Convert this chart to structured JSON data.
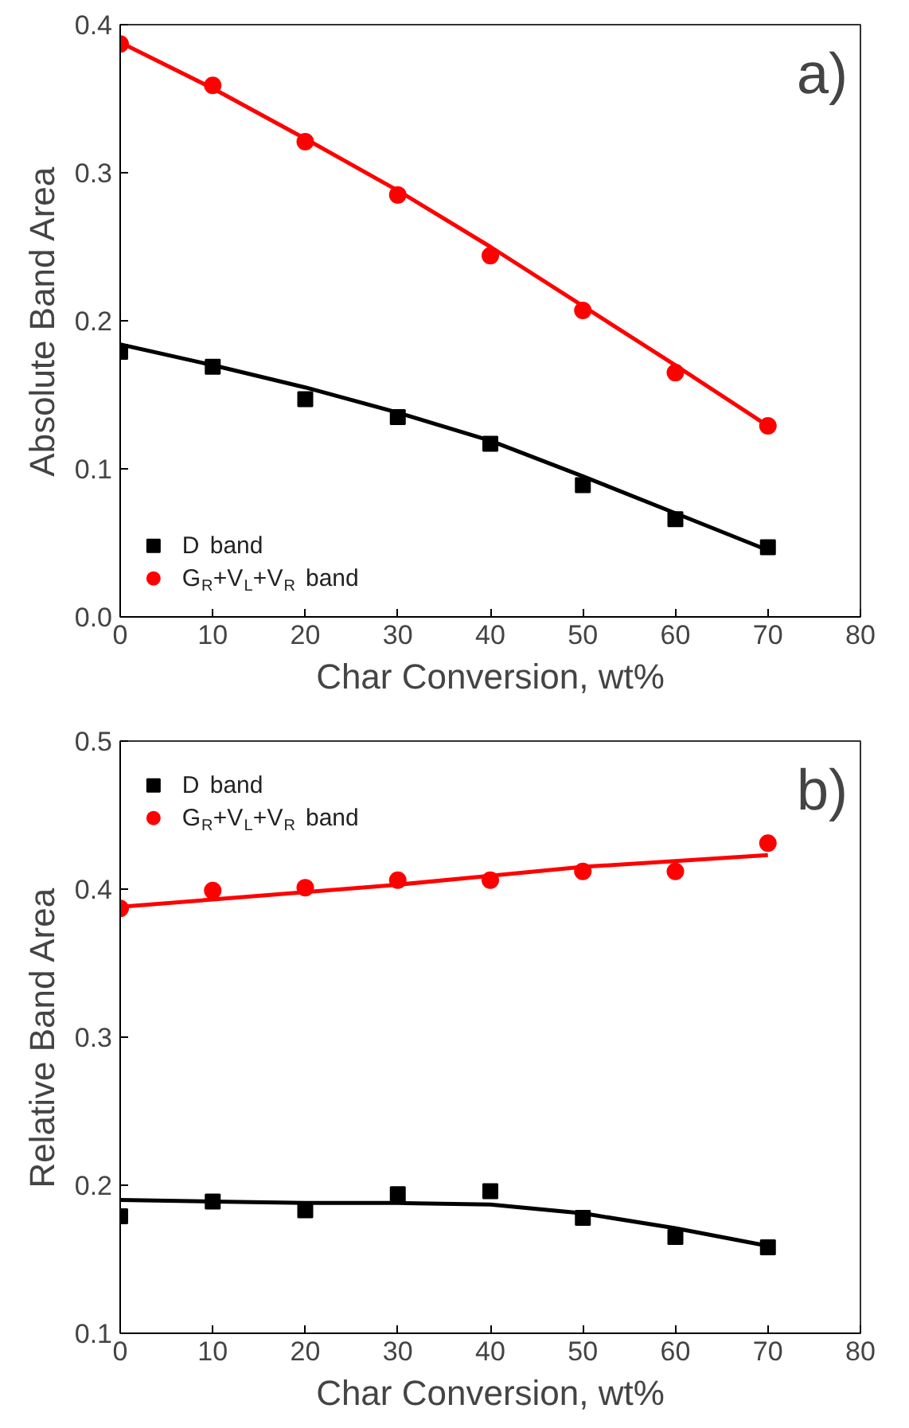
{
  "chart_data": [
    {
      "type": "scatter",
      "xlabel": "Char Conversion, wt%",
      "ylabel": "Absolute Band Area",
      "annotations": [
        "a)"
      ],
      "x": [
        0,
        10,
        20,
        30,
        40,
        50,
        60,
        70
      ],
      "series": [
        {
          "name": "D band",
          "color": "#000000",
          "marker": "square",
          "values": [
            0.179,
            0.169,
            0.147,
            0.135,
            0.117,
            0.089,
            0.066,
            0.047
          ]
        },
        {
          "name": "G$_{R}$+V$_{L}$+V$_{R}$ band",
          "color": "#ff0000",
          "marker": "circle",
          "values": [
            0.387,
            0.359,
            0.321,
            0.285,
            0.244,
            0.207,
            0.165,
            0.129
          ]
        },
        {
          "type": "line",
          "color": "#000000",
          "values": [
            0.184,
            0.17,
            0.155,
            0.138,
            0.119,
            0.095,
            0.07,
            0.045
          ]
        },
        {
          "type": "line",
          "color": "#ff0000",
          "values": [
            0.388,
            0.357,
            0.323,
            0.288,
            0.25,
            0.21,
            0.17,
            0.129
          ]
        }
      ],
      "xlim": [
        0,
        80
      ],
      "xticks": [
        0,
        10,
        20,
        30,
        40,
        50,
        60,
        70,
        80
      ],
      "ylim": [
        0,
        0.4
      ],
      "yticks": [
        {
          "value": 0,
          "label": "0.0"
        },
        0.1,
        0.2,
        0.3,
        0.4
      ],
      "grid": false,
      "legend": "bottom left"
    },
    {
      "type": "scatter",
      "xlabel": "Char Conversion, wt%",
      "ylabel": "Relative Band Area",
      "annotations": [
        "b)"
      ],
      "x": [
        0,
        10,
        20,
        30,
        40,
        50,
        60,
        70
      ],
      "series": [
        {
          "name": "D band",
          "color": "#000000",
          "marker": "square",
          "values": [
            0.179,
            0.189,
            0.183,
            0.194,
            0.196,
            0.178,
            0.165,
            0.158
          ]
        },
        {
          "name": "G$_{R}$+V$_{L}$+V$_{R}$ band",
          "color": "#ff0000",
          "marker": "circle",
          "values": [
            0.387,
            0.399,
            0.401,
            0.406,
            0.406,
            0.412,
            0.412,
            0.431
          ]
        },
        {
          "type": "line",
          "color": "#000000",
          "values": [
            0.19,
            0.189,
            0.188,
            0.188,
            0.187,
            0.181,
            0.171,
            0.159
          ]
        },
        {
          "type": "line",
          "color": "#ff0000",
          "values": [
            0.388,
            0.393,
            0.398,
            0.403,
            0.409,
            0.415,
            0.419,
            0.423
          ]
        }
      ],
      "xlim": [
        0,
        80
      ],
      "xticks": [
        0,
        10,
        20,
        30,
        40,
        50,
        60,
        70,
        80
      ],
      "ylim": [
        0.1,
        0.5
      ],
      "yticks": [
        0.1,
        0.2,
        0.3,
        0.4,
        0.5
      ],
      "grid": false,
      "legend": "top left"
    }
  ]
}
